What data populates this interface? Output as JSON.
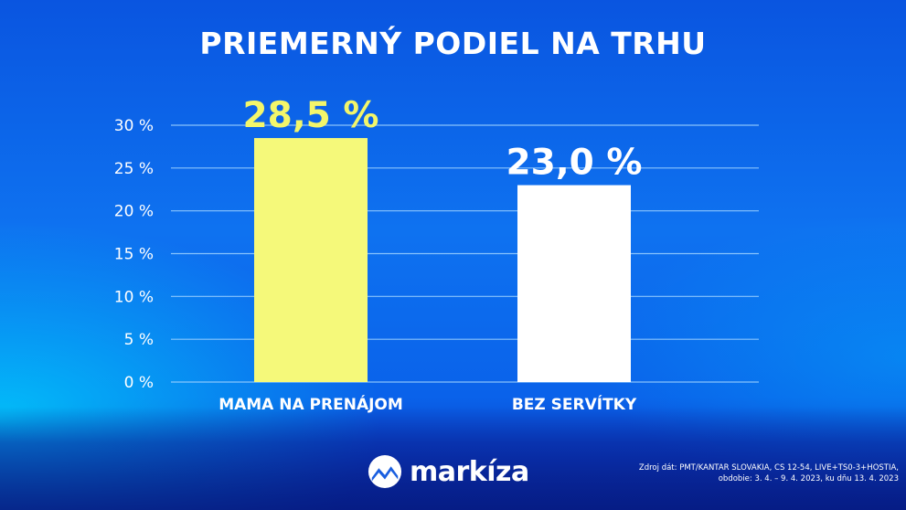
{
  "title": "PRIEMERNÝ PODIEL NA TRHU",
  "chart_data": {
    "type": "bar",
    "title": "PRIEMERNÝ PODIEL NA TRHU",
    "categories": [
      "MAMA NA PRENÁJOM",
      "BEZ SERVÍTKY"
    ],
    "values": [
      28.5,
      23.0
    ],
    "value_labels": [
      "28,5 %",
      "23,0 %"
    ],
    "bar_colors": [
      "#f5f97a",
      "#ffffff"
    ],
    "value_label_colors": [
      "#f3f66a",
      "#ffffff"
    ],
    "ylim": [
      0,
      30
    ],
    "yticks": [
      0,
      5,
      10,
      15,
      20,
      25,
      30
    ],
    "ytick_labels": [
      "0 %",
      "5 %",
      "10 %",
      "15 %",
      "20 %",
      "25 %",
      "30 %"
    ],
    "xlabel": "",
    "ylabel": "",
    "grid": true,
    "legend": "none"
  },
  "brand": {
    "name": "markíza",
    "icon": "markiza-logo-icon"
  },
  "source": {
    "line1": "Zdroj dát: PMT/KANTAR SLOVAKIA, CS 12-54, LIVE+TS0-3+HOSTIA,",
    "line2": "obdobie: 3. 4. – 9. 4. 2023, ku dňu 13. 4. 2023"
  },
  "colors": {
    "background": "#0e6ef0",
    "grid": "#9fd2ff",
    "text": "#ffffff"
  }
}
